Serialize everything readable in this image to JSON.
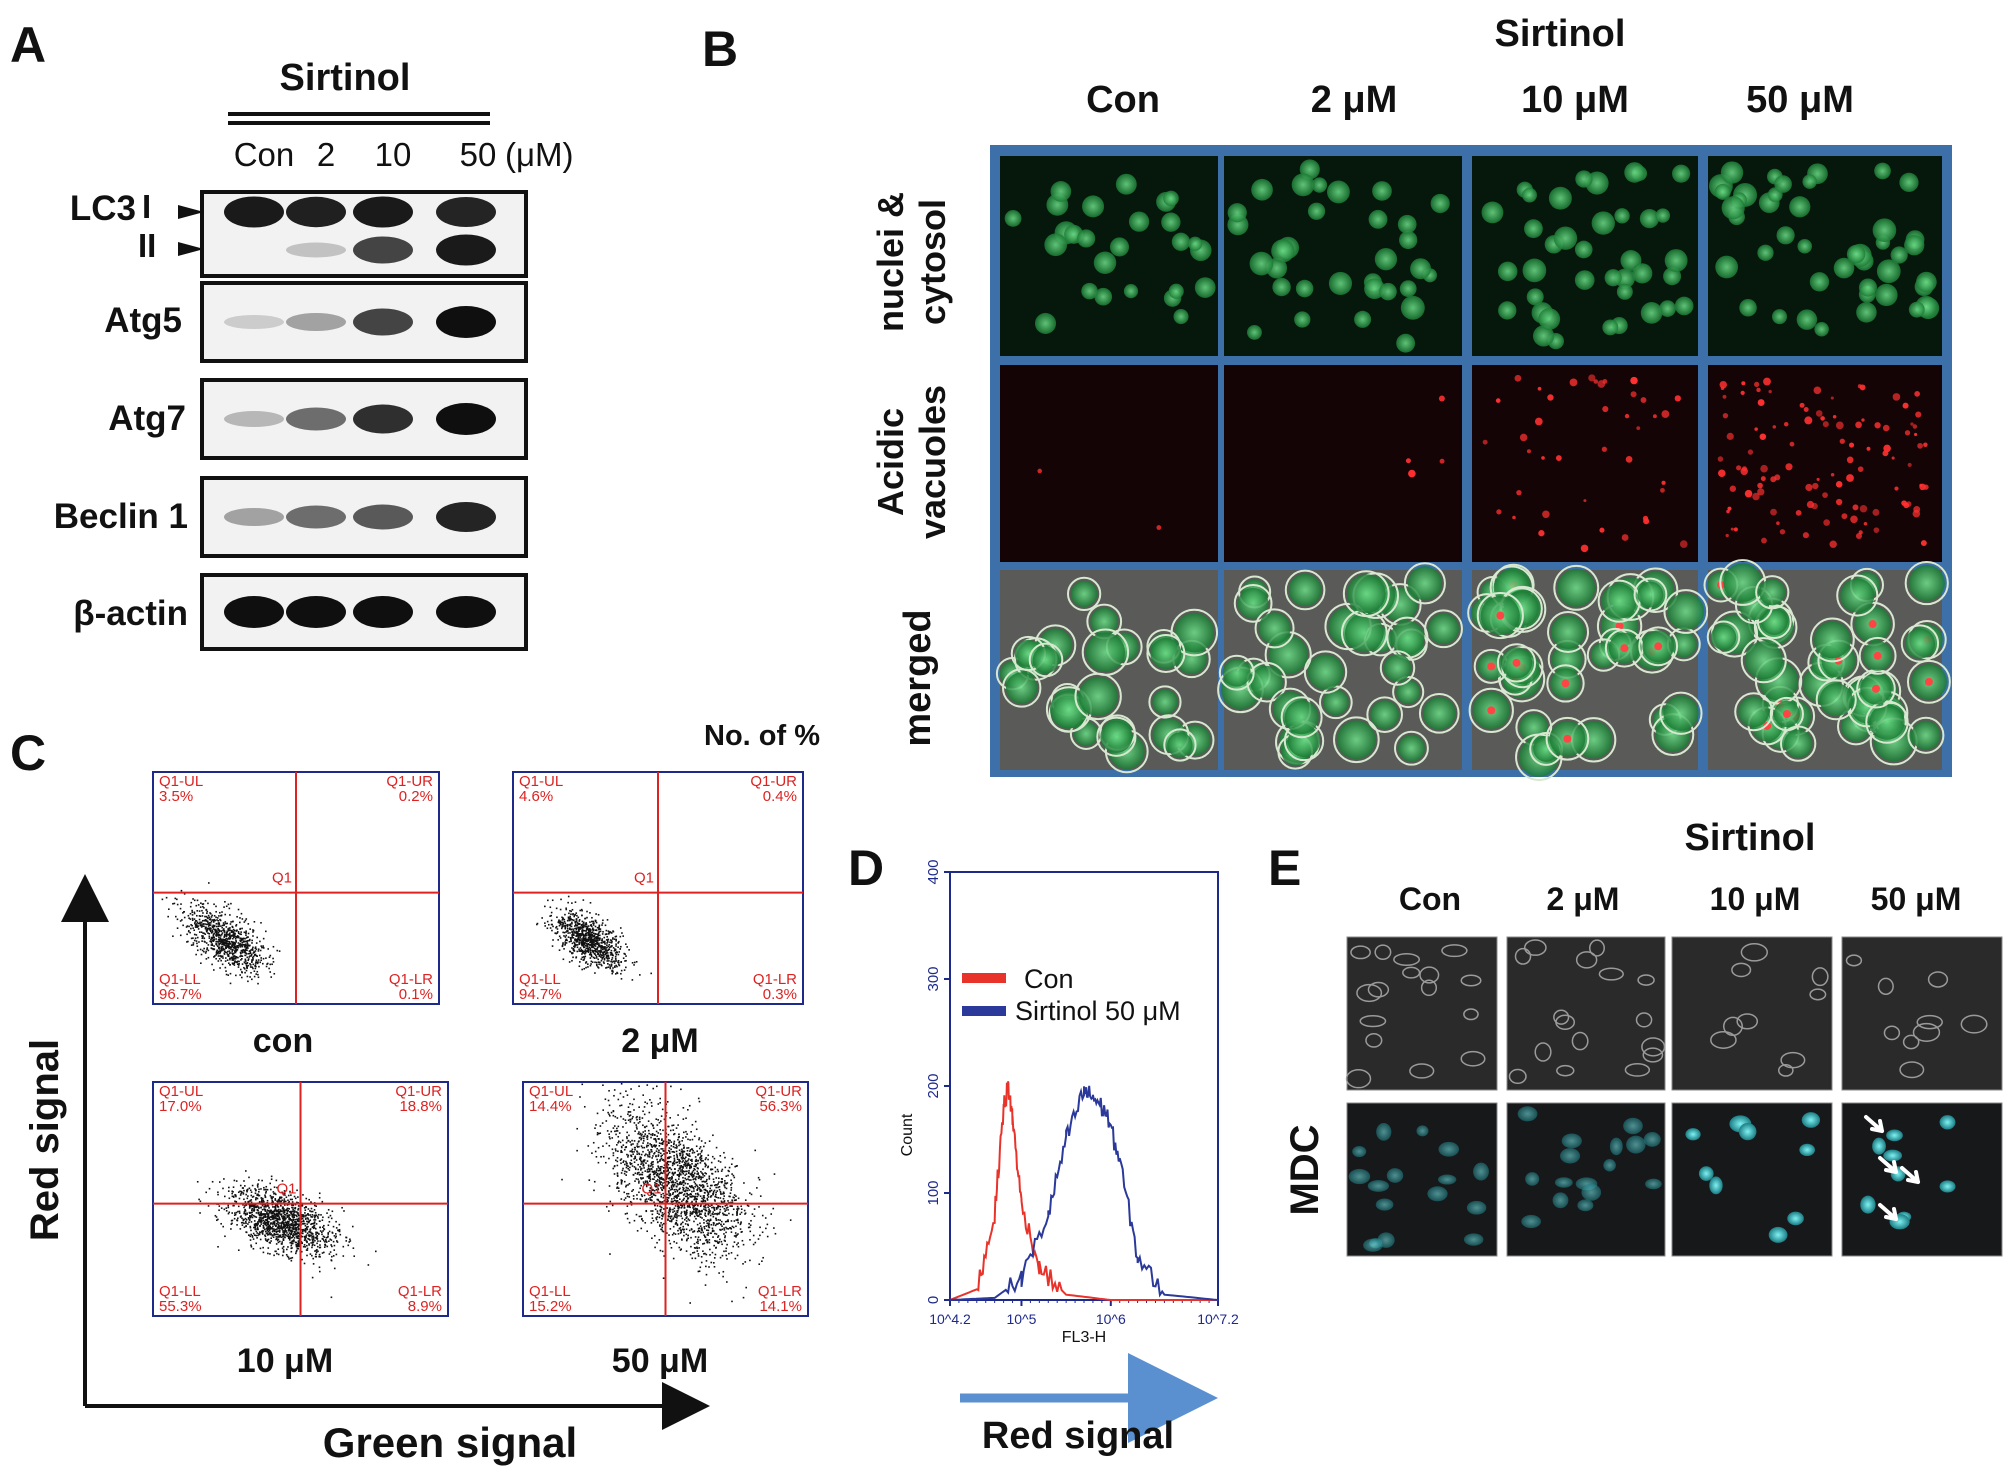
{
  "panelA": {
    "letter": "A",
    "drug": "Sirtinol",
    "lanes": [
      "Con",
      "2",
      "10",
      "50"
    ],
    "unit": "(μM)",
    "rows": [
      {
        "label": "LC3",
        "sub1": "I",
        "sub2": "II",
        "bands": [
          [
            0.95,
            0.92,
            0.95,
            0.9
          ],
          [
            0.0,
            0.15,
            0.75,
            0.95
          ]
        ]
      },
      {
        "label": "Atg5",
        "bands": [
          [
            0.1,
            0.3,
            0.75,
            1.0
          ]
        ]
      },
      {
        "label": "Atg7",
        "bands": [
          [
            0.2,
            0.55,
            0.85,
            1.0
          ]
        ]
      },
      {
        "label": "Beclin 1",
        "bands": [
          [
            0.3,
            0.55,
            0.65,
            0.9
          ]
        ]
      },
      {
        "label": "β-actin",
        "bands": [
          [
            1.0,
            1.0,
            1.0,
            1.0
          ]
        ]
      }
    ]
  },
  "panelB": {
    "letter": "B",
    "drug": "Sirtinol",
    "cols": [
      "Con",
      "2 μM",
      "10 μM",
      "50 μM"
    ],
    "row1_line1": "nuclei &",
    "row1_line2": "cytosol",
    "row2_line1": "Acidic",
    "row2_line2": "vacuoles",
    "row3": "merged"
  },
  "panelC": {
    "letter": "C",
    "note": "No. of %",
    "yaxis": "Red signal",
    "xaxis": "Green signal",
    "plots": [
      {
        "name": "con",
        "ul": "3.5%",
        "ur": "0.2%",
        "ll": "96.7%",
        "lr": "0.1%"
      },
      {
        "name": "2 μM",
        "ul": "4.6%",
        "ur": "0.4%",
        "ll": "94.7%",
        "lr": "0.3%"
      },
      {
        "name": "10 μM",
        "ul": "17.0%",
        "ur": "18.8%",
        "ll": "55.3%",
        "lr": "8.9%"
      },
      {
        "name": "50 μM",
        "ul": "14.4%",
        "ur": "56.3%",
        "ll": "15.2%",
        "lr": "14.1%"
      }
    ],
    "q_ul": "Q1-UL",
    "q_ur": "Q1-UR",
    "q_ll": "Q1-LL",
    "q_lr": "Q1-LR",
    "q_center": "Q1"
  },
  "panelD": {
    "letter": "D",
    "legend_con": "Con",
    "legend_sirt": "Sirtinol 50 μM",
    "ylabel": "Count",
    "xlabel": "FL3-H",
    "arrow_label": "Red  signal",
    "yticks": [
      "0",
      "100",
      "200",
      "300",
      "400"
    ],
    "xticks": [
      "10^4.2",
      "10^5",
      "10^6",
      "10^7.2"
    ],
    "colors": {
      "con": "#e8332b",
      "sirtinol": "#2b3a9a"
    }
  },
  "panelE": {
    "letter": "E",
    "drug": "Sirtinol",
    "cols": [
      "Con",
      "2 μM",
      "10 μM",
      "50 μM"
    ],
    "row_label": "MDC"
  },
  "chart_data": {
    "type": "line",
    "xlabel": "FL3-H",
    "ylabel": "Count",
    "ylim": [
      0,
      400
    ],
    "series": [
      {
        "name": "Con",
        "x": [
          4.2,
          4.5,
          4.7,
          4.8,
          4.85,
          4.9,
          5.0,
          5.2,
          5.5,
          6.0,
          7.2
        ],
        "y": [
          0,
          10,
          80,
          180,
          200,
          170,
          90,
          30,
          5,
          0,
          0
        ]
      },
      {
        "name": "Sirtinol 50 μM",
        "x": [
          4.2,
          4.7,
          5.0,
          5.3,
          5.5,
          5.7,
          5.8,
          5.95,
          6.1,
          6.3,
          6.6,
          7.2
        ],
        "y": [
          0,
          2,
          20,
          80,
          150,
          195,
          190,
          175,
          130,
          40,
          5,
          0
        ]
      }
    ]
  }
}
